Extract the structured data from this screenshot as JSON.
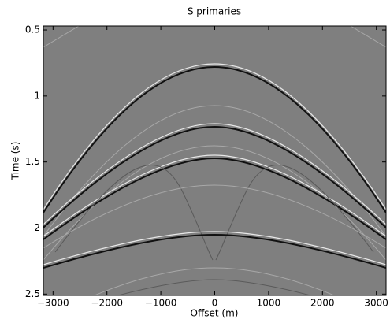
{
  "chart_data": {
    "type": "image",
    "title": "S primaries",
    "xlabel": "Offset (m)",
    "ylabel": "Time (s)",
    "xlim": [
      -3180,
      3180
    ],
    "ylim": [
      0.47,
      2.51
    ],
    "y_reversed": true,
    "xticks": [
      {
        "value": -3000,
        "label": "−3000"
      },
      {
        "value": -2000,
        "label": "−2000"
      },
      {
        "value": -1000,
        "label": "−1000"
      },
      0,
      1000,
      2000,
      3000
    ],
    "yticks": [
      0.5,
      1,
      1.5,
      2,
      2.5
    ]
  }
}
